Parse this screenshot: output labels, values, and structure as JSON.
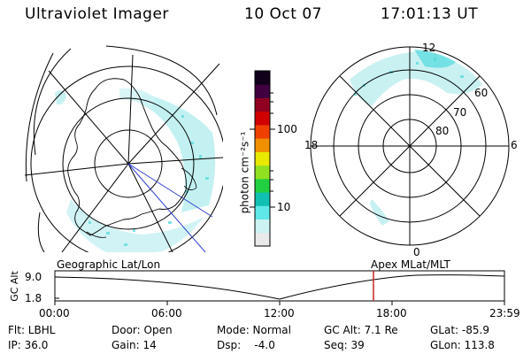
{
  "header": {
    "instrument": "Ultraviolet Imager",
    "date": "10 Oct 07",
    "time": "17:01:13 UT"
  },
  "colorbar": {
    "unit_label": "photon cm⁻²s⁻¹",
    "ticks": [
      "100",
      "10"
    ],
    "colors": [
      "#eaeaea",
      "#ccf2f2",
      "#60e8e8",
      "#10c0b0",
      "#20d040",
      "#90e020",
      "#e8e800",
      "#f09000",
      "#f04000",
      "#d00000",
      "#900020",
      "#400040",
      "#10001a"
    ]
  },
  "left_panel": {
    "caption": "Geographic Lat/Lon"
  },
  "right_panel": {
    "caption": "Apex MLat/MLT",
    "mlt_labels": [
      "12",
      "18",
      "6",
      "0"
    ],
    "mlat_labels": [
      "60",
      "70",
      "80"
    ]
  },
  "altitude_plot": {
    "ylabel": "GC Alt",
    "yticks": [
      "9.0",
      "1.8"
    ],
    "xticks": [
      "00:00",
      "06:00",
      "12:00",
      "18:00",
      "23:59"
    ],
    "marker_color": "#d02020"
  },
  "info": {
    "flt": "Flt: LBHL",
    "ip": "IP: 36.0",
    "door": "Door: Open",
    "gain": "Gain: 14",
    "mode": "Mode: Normal",
    "dsp": "Dsp:    -4.0",
    "gcalt": "GC Alt: 7.1 Re",
    "seq": "Seq: 39",
    "glat": "GLat: -85.9",
    "glon": "GLon: 113.8"
  }
}
